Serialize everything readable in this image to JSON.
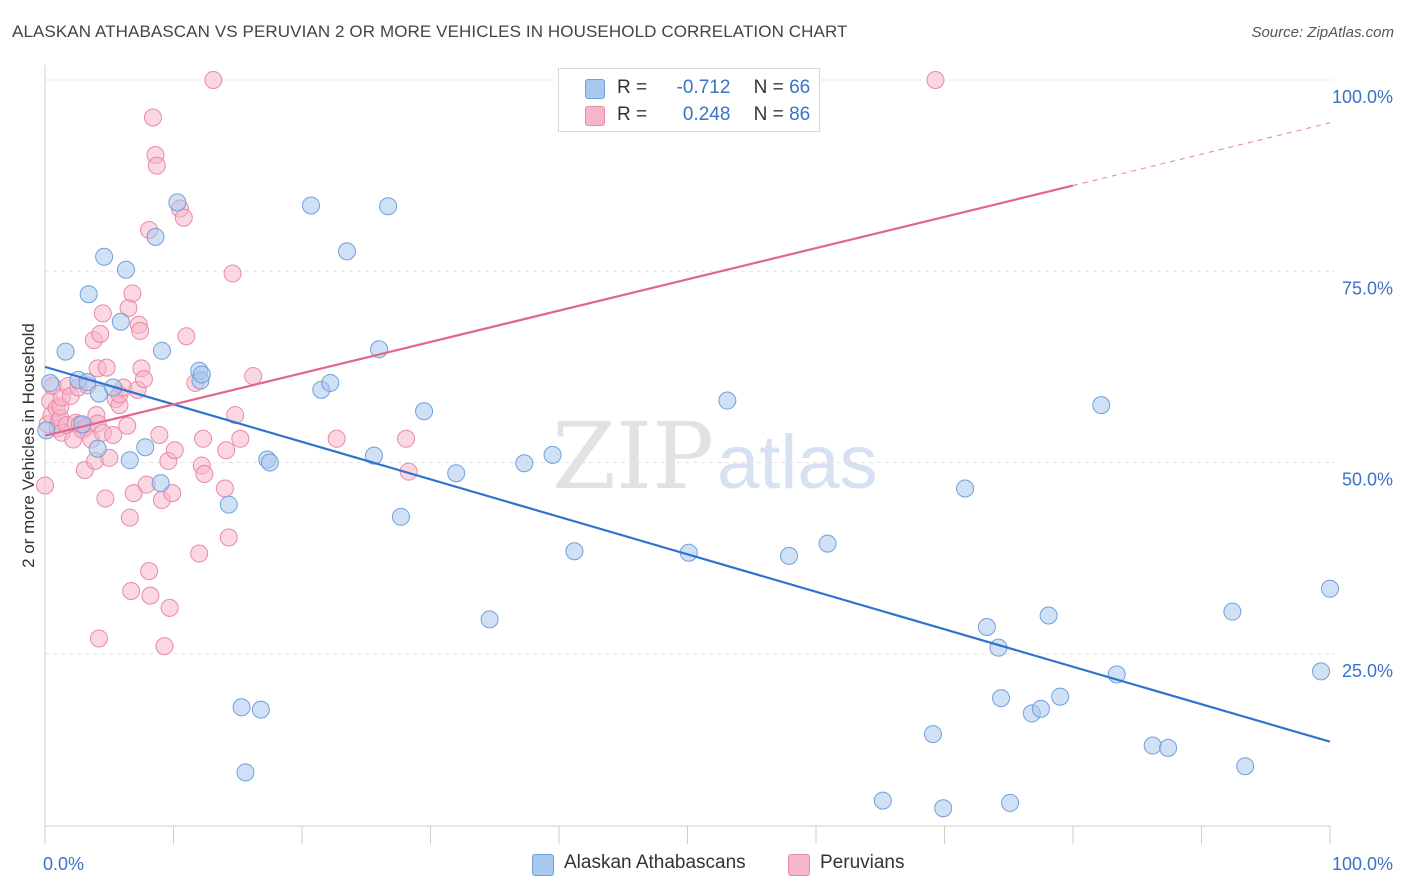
{
  "header": {
    "title": "ALASKAN ATHABASCAN VS PERUVIAN 2 OR MORE VEHICLES IN HOUSEHOLD CORRELATION CHART",
    "source": "Source: ZipAtlas.com"
  },
  "legend": {
    "rows": [
      {
        "r_label": "R =",
        "r_value": "-0.712",
        "n_label": "N =",
        "n_value": "66"
      },
      {
        "r_label": "R =",
        "r_value": "0.248",
        "n_label": "N =",
        "n_value": "86"
      }
    ]
  },
  "bottom_legend": {
    "items": [
      {
        "label": "Alaskan Athabascans"
      },
      {
        "label": "Peruvians"
      }
    ]
  },
  "watermark": {
    "part1": "ZIP",
    "part2": "atlas"
  },
  "colors": {
    "blue_fill": "#a9c8ee",
    "blue_stroke": "#6fa0dc",
    "blue_line": "#2f74d0",
    "pink_fill": "#f5b6c9",
    "pink_stroke": "#e98aa8",
    "pink_line": "#e0668e",
    "axis_text": "#3a72c8"
  },
  "chart_data": {
    "type": "scatter",
    "title": "ALASKAN ATHABASCAN VS PERUVIAN 2 OR MORE VEHICLES IN HOUSEHOLD CORRELATION CHART",
    "xlabel": "",
    "ylabel": "2 or more Vehicles in Household",
    "xlim": [
      0,
      100
    ],
    "ylim": [
      0,
      105
    ],
    "x_tick_labels": [
      "0.0%",
      "100.0%"
    ],
    "y_ticks": [
      25,
      50,
      75,
      100
    ],
    "y_tick_labels": [
      "25.0%",
      "50.0%",
      "75.0%",
      "100.0%"
    ],
    "grid": true,
    "legend_position": "top-center",
    "series": [
      {
        "name": "Alaskan Athabascans",
        "color": "#a9c8ee",
        "trend": {
          "x0": 0,
          "y0": 62.5,
          "x1": 100,
          "y1": 13.5
        },
        "points": [
          [
            0.1,
            54.2
          ],
          [
            0.4,
            60.4
          ],
          [
            1.6,
            64.5
          ],
          [
            2.6,
            60.8
          ],
          [
            3.3,
            60.5
          ],
          [
            3.4,
            72.0
          ],
          [
            4.1,
            51.8
          ],
          [
            4.2,
            59.0
          ],
          [
            4.6,
            76.9
          ],
          [
            5.3,
            59.8
          ],
          [
            5.9,
            68.4
          ],
          [
            6.3,
            75.2
          ],
          [
            6.6,
            50.3
          ],
          [
            7.8,
            52.0
          ],
          [
            8.6,
            79.5
          ],
          [
            9.0,
            47.3
          ],
          [
            9.1,
            64.6
          ],
          [
            10.3,
            84.0
          ],
          [
            12.0,
            62.0
          ],
          [
            12.1,
            60.7
          ],
          [
            14.3,
            44.5
          ],
          [
            15.3,
            18.0
          ],
          [
            15.6,
            9.5
          ],
          [
            16.8,
            17.7
          ],
          [
            17.3,
            50.4
          ],
          [
            17.5,
            50.0
          ],
          [
            20.7,
            83.6
          ],
          [
            21.5,
            59.5
          ],
          [
            22.2,
            60.4
          ],
          [
            23.5,
            77.6
          ],
          [
            25.6,
            50.9
          ],
          [
            26.0,
            64.8
          ],
          [
            26.7,
            83.5
          ],
          [
            27.7,
            42.9
          ],
          [
            29.5,
            56.7
          ],
          [
            32.0,
            48.6
          ],
          [
            34.6,
            29.5
          ],
          [
            37.3,
            49.9
          ],
          [
            39.5,
            51.0
          ],
          [
            41.2,
            38.4
          ],
          [
            50.1,
            38.2
          ],
          [
            53.1,
            58.1
          ],
          [
            57.9,
            37.8
          ],
          [
            60.9,
            39.4
          ],
          [
            65.2,
            5.8
          ],
          [
            69.1,
            14.5
          ],
          [
            69.9,
            4.8
          ],
          [
            71.6,
            46.6
          ],
          [
            73.3,
            28.5
          ],
          [
            74.2,
            25.8
          ],
          [
            74.4,
            19.2
          ],
          [
            75.1,
            5.5
          ],
          [
            76.8,
            17.2
          ],
          [
            77.5,
            17.8
          ],
          [
            78.1,
            30.0
          ],
          [
            79.0,
            19.4
          ],
          [
            82.2,
            57.5
          ],
          [
            83.4,
            22.3
          ],
          [
            86.2,
            13.0
          ],
          [
            87.4,
            12.7
          ],
          [
            92.4,
            30.5
          ],
          [
            93.4,
            10.3
          ],
          [
            99.3,
            22.7
          ],
          [
            100.0,
            33.5
          ],
          [
            2.9,
            55.0
          ],
          [
            12.2,
            61.5
          ]
        ]
      },
      {
        "name": "Peruvians",
        "color": "#f5b6c9",
        "trend": {
          "x0": 0,
          "y0": 53.5,
          "x1": 80,
          "y1": 86.2,
          "dash_x1": 100,
          "dash_y1": 94.4
        },
        "points": [
          [
            0.0,
            47.0
          ],
          [
            0.2,
            55.0
          ],
          [
            0.4,
            58.0
          ],
          [
            0.5,
            56.2
          ],
          [
            0.6,
            60.0
          ],
          [
            0.9,
            57.1
          ],
          [
            1.0,
            54.5
          ],
          [
            1.1,
            55.4
          ],
          [
            1.2,
            55.8
          ],
          [
            1.2,
            57.3
          ],
          [
            1.3,
            58.5
          ],
          [
            1.3,
            53.9
          ],
          [
            1.7,
            54.9
          ],
          [
            1.8,
            60.0
          ],
          [
            2.0,
            58.7
          ],
          [
            2.2,
            53.0
          ],
          [
            2.4,
            55.2
          ],
          [
            2.6,
            59.8
          ],
          [
            2.7,
            55.0
          ],
          [
            2.9,
            54.3
          ],
          [
            3.1,
            49.0
          ],
          [
            3.2,
            54.6
          ],
          [
            3.3,
            60.1
          ],
          [
            3.6,
            53.0
          ],
          [
            3.8,
            66.0
          ],
          [
            3.9,
            50.2
          ],
          [
            4.0,
            56.2
          ],
          [
            4.1,
            55.1
          ],
          [
            4.1,
            62.3
          ],
          [
            4.2,
            27.0
          ],
          [
            4.3,
            66.8
          ],
          [
            4.5,
            53.9
          ],
          [
            4.5,
            69.5
          ],
          [
            4.7,
            45.3
          ],
          [
            4.8,
            62.4
          ],
          [
            5.0,
            50.6
          ],
          [
            5.3,
            53.6
          ],
          [
            5.5,
            58.3
          ],
          [
            5.8,
            57.5
          ],
          [
            5.8,
            58.9
          ],
          [
            6.1,
            59.8
          ],
          [
            6.4,
            54.8
          ],
          [
            6.5,
            70.2
          ],
          [
            6.6,
            42.8
          ],
          [
            6.7,
            33.2
          ],
          [
            6.8,
            72.1
          ],
          [
            6.9,
            46.0
          ],
          [
            7.2,
            59.5
          ],
          [
            7.3,
            68.0
          ],
          [
            7.4,
            67.2
          ],
          [
            7.5,
            62.3
          ],
          [
            7.7,
            60.9
          ],
          [
            7.9,
            47.1
          ],
          [
            8.1,
            35.8
          ],
          [
            8.1,
            80.4
          ],
          [
            8.2,
            32.6
          ],
          [
            8.4,
            95.1
          ],
          [
            8.6,
            90.2
          ],
          [
            8.7,
            88.8
          ],
          [
            8.9,
            53.6
          ],
          [
            9.1,
            45.1
          ],
          [
            9.3,
            26.0
          ],
          [
            9.6,
            50.2
          ],
          [
            9.7,
            31.0
          ],
          [
            9.9,
            46.0
          ],
          [
            10.1,
            51.6
          ],
          [
            10.5,
            83.2
          ],
          [
            10.8,
            82.0
          ],
          [
            11.0,
            66.5
          ],
          [
            11.7,
            60.4
          ],
          [
            12.0,
            38.1
          ],
          [
            12.2,
            49.6
          ],
          [
            12.3,
            53.1
          ],
          [
            12.4,
            48.5
          ],
          [
            14.0,
            46.6
          ],
          [
            14.1,
            51.6
          ],
          [
            14.3,
            40.2
          ],
          [
            14.6,
            74.7
          ],
          [
            14.8,
            56.2
          ],
          [
            15.2,
            53.1
          ],
          [
            16.2,
            61.3
          ],
          [
            22.7,
            53.1
          ],
          [
            28.1,
            53.1
          ],
          [
            28.3,
            48.8
          ],
          [
            13.1,
            100.0
          ],
          [
            69.3,
            100.0
          ]
        ]
      }
    ]
  }
}
